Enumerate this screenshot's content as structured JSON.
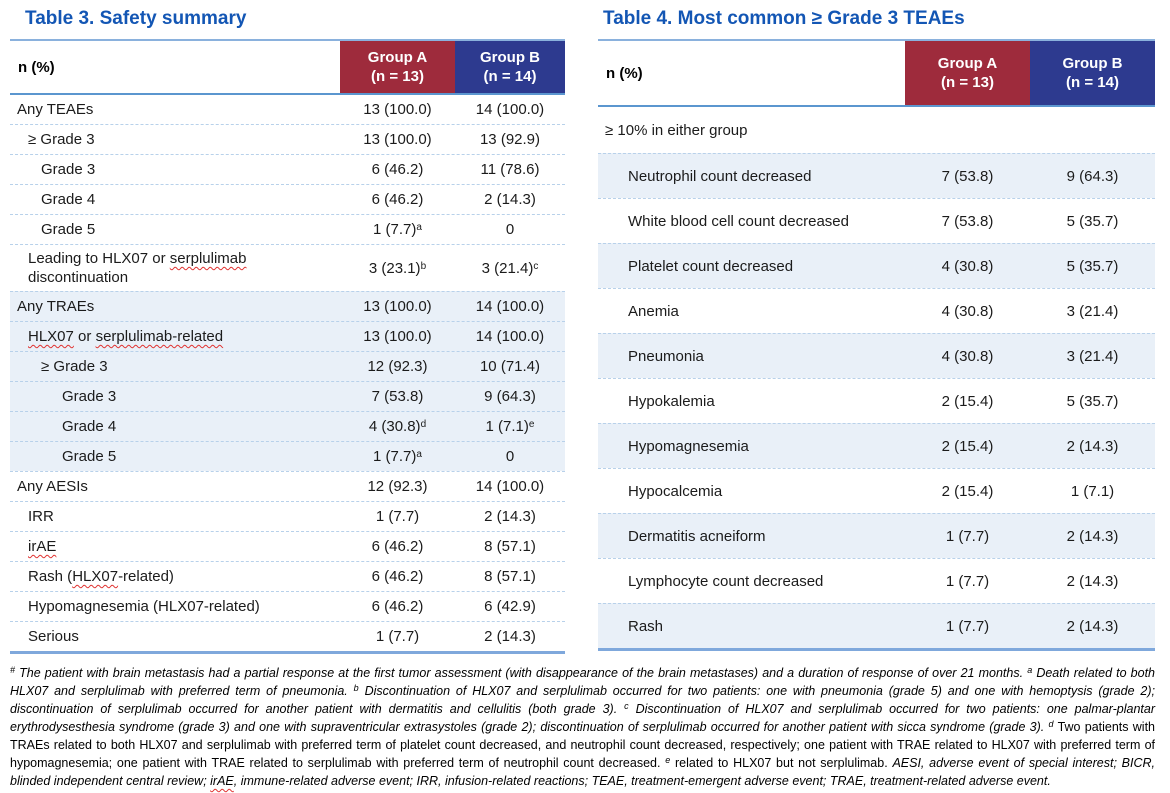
{
  "colors": {
    "title_blue": "#1356b4",
    "group_a_header": "#9e2b3c",
    "group_b_header": "#2d3a8f",
    "shaded_row": "#e9f0f8",
    "row_separator": "#b8d1ea",
    "table_rule": "#7fa8dc",
    "spellcheck_squiggle": "#e0312f"
  },
  "table3": {
    "title": "Table 3. Safety summary",
    "header": {
      "label": "n (%)",
      "group_a": {
        "name": "Group A",
        "n": "(n = 13)"
      },
      "group_b": {
        "name": "Group B",
        "n": "(n = 14)"
      }
    },
    "rows": [
      {
        "label": "Any TEAEs",
        "indent": 0,
        "shaded": false,
        "group_a": "13 (100.0)",
        "group_b": "14 (100.0)"
      },
      {
        "label": "≥ Grade 3",
        "indent": 1,
        "shaded": false,
        "group_a": "13 (100.0)",
        "group_b": "13 (92.9)"
      },
      {
        "label": "Grade 3",
        "indent": 2,
        "shaded": false,
        "group_a": "6 (46.2)",
        "group_b": "11 (78.6)"
      },
      {
        "label": "Grade 4",
        "indent": 2,
        "shaded": false,
        "group_a": "6 (46.2)",
        "group_b": "2 (14.3)"
      },
      {
        "label": "Grade 5",
        "indent": 2,
        "shaded": false,
        "group_a": "1 (7.7)^a",
        "group_b": "0"
      },
      {
        "label": "Leading to HLX07 or ~serplulimab~ discontinuation",
        "indent": 1,
        "shaded": false,
        "group_a": "3 (23.1)^b",
        "group_b": "3 (21.4)^c"
      },
      {
        "label": "Any TRAEs",
        "indent": 0,
        "shaded": true,
        "group_a": "13 (100.0)",
        "group_b": "14 (100.0)"
      },
      {
        "label": "~HLX07~ or ~serplulimab-related~",
        "indent": 1,
        "shaded": true,
        "group_a": "13 (100.0)",
        "group_b": "14 (100.0)"
      },
      {
        "label": "≥ Grade 3",
        "indent": 2,
        "shaded": true,
        "group_a": "12 (92.3)",
        "group_b": "10 (71.4)"
      },
      {
        "label": "Grade 3",
        "indent": 3,
        "shaded": true,
        "group_a": "7 (53.8)",
        "group_b": "9 (64.3)"
      },
      {
        "label": "Grade 4",
        "indent": 3,
        "shaded": true,
        "group_a": "4 (30.8)^d",
        "group_b": "1 (7.1)^e"
      },
      {
        "label": "Grade 5",
        "indent": 3,
        "shaded": true,
        "group_a": "1 (7.7)^a",
        "group_b": "0"
      },
      {
        "label": "Any AESIs",
        "indent": 0,
        "shaded": false,
        "group_a": "12 (92.3)",
        "group_b": "14 (100.0)"
      },
      {
        "label": "IRR",
        "indent": 1,
        "shaded": false,
        "group_a": "1 (7.7)",
        "group_b": "2 (14.3)"
      },
      {
        "label": "~irAE~",
        "indent": 1,
        "shaded": false,
        "group_a": "6 (46.2)",
        "group_b": "8 (57.1)"
      },
      {
        "label": "Rash (~HLX07~-related)",
        "indent": 1,
        "shaded": false,
        "group_a": "6 (46.2)",
        "group_b": "8 (57.1)"
      },
      {
        "label": "Hypomagnesemia (HLX07-related)",
        "indent": 1,
        "shaded": false,
        "group_a": "6 (46.2)",
        "group_b": "6 (42.9)"
      },
      {
        "label": "Serious",
        "indent": 1,
        "shaded": false,
        "group_a": "1 (7.7)",
        "group_b": "2 (14.3)"
      }
    ]
  },
  "table4": {
    "title": "Table 4. Most common ≥ Grade 3 TEAEs",
    "header": {
      "label": "n (%)",
      "group_a": {
        "name": "Group A",
        "n": "(n = 13)"
      },
      "group_b": {
        "name": "Group B",
        "n": "(n = 14)"
      }
    },
    "rows": [
      {
        "label": "≥ 10% in either group",
        "indent": 0,
        "shaded": false,
        "section": true,
        "group_a": "",
        "group_b": ""
      },
      {
        "label": "Neutrophil count decreased",
        "indent": 1,
        "shaded": true,
        "group_a": "7 (53.8)",
        "group_b": "9 (64.3)"
      },
      {
        "label": "White blood cell count decreased",
        "indent": 1,
        "shaded": false,
        "group_a": "7 (53.8)",
        "group_b": "5 (35.7)"
      },
      {
        "label": "Platelet count decreased",
        "indent": 1,
        "shaded": true,
        "group_a": "4 (30.8)",
        "group_b": "5 (35.7)"
      },
      {
        "label": "Anemia",
        "indent": 1,
        "shaded": false,
        "group_a": "4 (30.8)",
        "group_b": "3 (21.4)"
      },
      {
        "label": "Pneumonia",
        "indent": 1,
        "shaded": true,
        "group_a": "4 (30.8)",
        "group_b": "3 (21.4)"
      },
      {
        "label": "Hypokalemia",
        "indent": 1,
        "shaded": false,
        "group_a": "2 (15.4)",
        "group_b": "5 (35.7)"
      },
      {
        "label": "Hypomagnesemia",
        "indent": 1,
        "shaded": true,
        "group_a": "2 (15.4)",
        "group_b": "2 (14.3)"
      },
      {
        "label": "Hypocalcemia",
        "indent": 1,
        "shaded": false,
        "group_a": "2 (15.4)",
        "group_b": "1 (7.1)"
      },
      {
        "label": "Dermatitis acneiform",
        "indent": 1,
        "shaded": true,
        "group_a": "1 (7.7)",
        "group_b": "2 (14.3)"
      },
      {
        "label": "Lymphocyte count decreased",
        "indent": 1,
        "shaded": false,
        "group_a": "1 (7.7)",
        "group_b": "2 (14.3)"
      },
      {
        "label": "Rash",
        "indent": 1,
        "shaded": true,
        "group_a": "1 (7.7)",
        "group_b": "2 (14.3)"
      }
    ]
  },
  "footnote": {
    "segments": [
      {
        "sup": "#",
        "italic": true,
        "text": "The patient with brain metastasis had a partial response at the first tumor assessment (with disappearance of the brain metastases) and a duration of response of over 21 months."
      },
      {
        "sup": "a",
        "italic": true,
        "text": "Death related to both HLX07 and serplulimab with preferred term of pneumonia."
      },
      {
        "sup": "b",
        "italic": true,
        "text": "Discontinuation of HLX07 and serplulimab occurred for two patients: one with pneumonia (grade 5) and one with hemoptysis (grade 2); discontinuation of serplulimab occurred for another patient with dermatitis and cellulitis (both grade 3)."
      },
      {
        "sup": "c",
        "italic": true,
        "text": "Discontinuation of HLX07 and serplulimab occurred for two patients: one palmar-plantar erythrodysesthesia syndrome (grade 3) and one with supraventricular extrasystoles (grade 2); discontinuation of serplulimab occurred for another patient with sicca syndrome (grade 3)."
      },
      {
        "sup": "d",
        "italic": false,
        "text": "Two patients with TRAEs related to both HLX07 and serplulimab with preferred term of platelet count decreased, and neutrophil count decreased, respectively; one patient with TRAE related to HLX07 with preferred term of hypomagnesemia; one patient with TRAE related to serplulimab with preferred term of neutrophil count decreased."
      },
      {
        "sup": "e",
        "italic": false,
        "text": "related to HLX07 but not serplulimab."
      },
      {
        "sup": "",
        "italic": true,
        "text": "AESI, adverse event of special interest; BICR, blinded independent central review; ~irAE~, immune-related adverse event; IRR, infusion-related reactions; TEAE, treatment-emergent adverse event; TRAE, treatment-related adverse event."
      }
    ]
  }
}
